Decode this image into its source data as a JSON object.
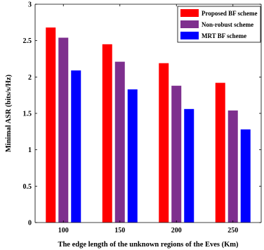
{
  "chart_data": {
    "type": "bar",
    "title": "",
    "xlabel": "The edge length of the unknown regions of the Eves (Km)",
    "ylabel": "Minimal ASR (bits/s/Hz)",
    "categories": [
      "100",
      "150",
      "200",
      "250"
    ],
    "series": [
      {
        "name": "Proposed BF scheme",
        "color": "#ff0000",
        "values": [
          2.68,
          2.45,
          2.19,
          1.92
        ]
      },
      {
        "name": "Non-robust scheme",
        "color": "#7e2f8e",
        "values": [
          2.54,
          2.21,
          1.88,
          1.54
        ]
      },
      {
        "name": "MRT BF scheme",
        "color": "#0000ff",
        "values": [
          2.09,
          1.83,
          1.56,
          1.28
        ]
      }
    ],
    "ylim": [
      0,
      3
    ],
    "yticks": [
      "0",
      "0.5",
      "1",
      "1.5",
      "2",
      "2.5",
      "3"
    ],
    "legend_position": "top-right",
    "grid": false
  }
}
